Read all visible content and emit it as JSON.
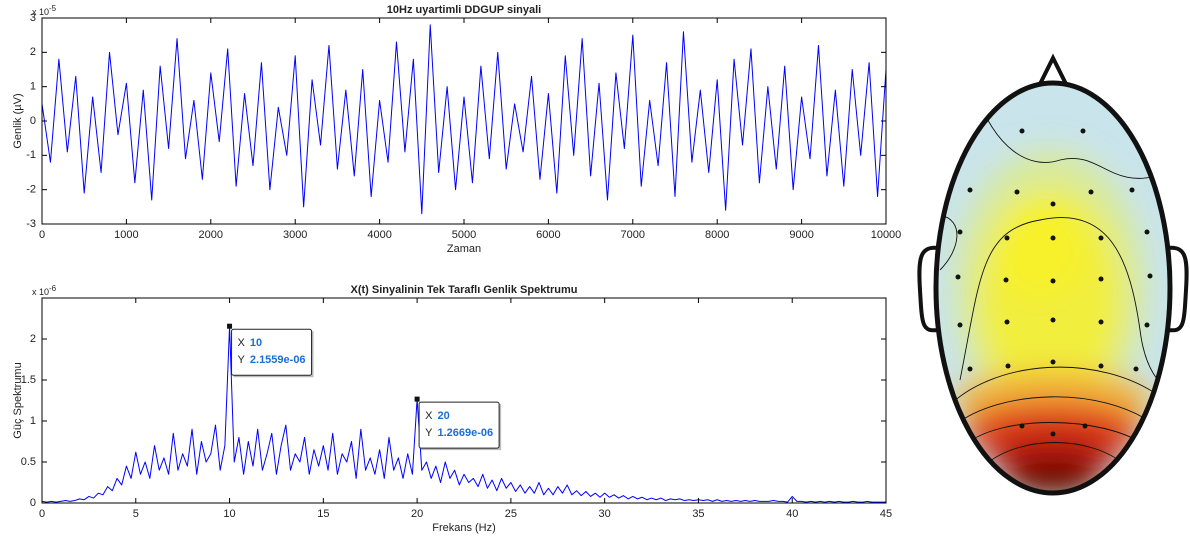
{
  "chart_data": [
    {
      "type": "line",
      "title": "10Hz uyartimli DDGUP sinyali",
      "xlabel": "Zaman",
      "ylabel": "Genlik (µV)",
      "y_multiplier": {
        "base": "x 10",
        "exponent": "-5"
      },
      "color": "#0000ff",
      "xlim": [
        0,
        10000
      ],
      "xticks": [
        0,
        1000,
        2000,
        3000,
        4000,
        5000,
        6000,
        7000,
        8000,
        9000,
        10000
      ],
      "ylim": [
        -3,
        3
      ],
      "yticks": [
        -3,
        -2,
        -1,
        0,
        1,
        2,
        3
      ],
      "x": [
        0,
        100,
        200,
        300,
        400,
        500,
        600,
        700,
        800,
        900,
        1000,
        1100,
        1200,
        1300,
        1400,
        1500,
        1600,
        1700,
        1800,
        1900,
        2000,
        2100,
        2200,
        2300,
        2400,
        2500,
        2600,
        2700,
        2800,
        2900,
        3000,
        3100,
        3200,
        3300,
        3400,
        3500,
        3600,
        3700,
        3800,
        3900,
        4000,
        4100,
        4200,
        4300,
        4400,
        4500,
        4600,
        4700,
        4800,
        4900,
        5000,
        5100,
        5200,
        5300,
        5400,
        5500,
        5600,
        5700,
        5800,
        5900,
        6000,
        6100,
        6200,
        6300,
        6400,
        6500,
        6600,
        6700,
        6800,
        6900,
        7000,
        7100,
        7200,
        7300,
        7400,
        7500,
        7600,
        7700,
        7800,
        7900,
        8000,
        8100,
        8200,
        8300,
        8400,
        8500,
        8600,
        8700,
        8800,
        8900,
        9000,
        9100,
        9200,
        9300,
        9400,
        9500,
        9600,
        9700,
        9800,
        9900,
        10000
      ],
      "values": [
        0.5,
        -1.2,
        1.8,
        -0.9,
        1.3,
        -2.1,
        0.7,
        -1.5,
        2.0,
        -0.4,
        1.1,
        -1.8,
        0.9,
        -2.3,
        1.6,
        -0.8,
        2.4,
        -1.1,
        0.6,
        -1.7,
        1.4,
        -0.6,
        2.1,
        -1.9,
        0.8,
        -1.3,
        1.7,
        -2.0,
        0.4,
        -1.0,
        1.9,
        -2.5,
        1.2,
        -0.7,
        2.2,
        -1.4,
        0.9,
        -1.6,
        1.5,
        -2.2,
        0.6,
        -1.2,
        2.3,
        -0.9,
        1.8,
        -2.7,
        2.8,
        -1.5,
        1.0,
        -2.0,
        0.7,
        -1.8,
        1.6,
        -1.1,
        2.0,
        -1.4,
        0.5,
        -0.9,
        1.3,
        -1.7,
        0.8,
        -2.1,
        1.9,
        -1.0,
        2.4,
        -1.6,
        1.1,
        -2.3,
        1.4,
        -0.8,
        2.5,
        -1.9,
        0.6,
        -1.3,
        1.7,
        -2.2,
        2.6,
        -1.2,
        0.9,
        -1.5,
        1.2,
        -2.6,
        1.8,
        -0.7,
        2.1,
        -1.8,
        1.0,
        -1.4,
        1.6,
        -2.0,
        0.7,
        -1.1,
        2.2,
        -1.6,
        0.9,
        -1.9,
        1.5,
        -1.0,
        1.7,
        -2.2,
        1.5
      ]
    },
    {
      "type": "line",
      "title": "X(t) Sinyalinin Tek Taraflı Genlik Spektrumu",
      "xlabel": "Frekans (Hz)",
      "ylabel": "Güç Spektrumu",
      "y_multiplier": {
        "base": "x 10",
        "exponent": "-6"
      },
      "color": "#0000ff",
      "xlim": [
        0,
        45
      ],
      "xticks": [
        0,
        5,
        10,
        15,
        20,
        25,
        30,
        35,
        40,
        45
      ],
      "ylim": [
        0,
        2.5
      ],
      "yticks": [
        0,
        0.5,
        1,
        1.5,
        2
      ],
      "x": [
        0,
        0.25,
        0.5,
        0.75,
        1,
        1.25,
        1.5,
        1.75,
        2,
        2.25,
        2.5,
        2.75,
        3,
        3.25,
        3.5,
        3.75,
        4,
        4.25,
        4.5,
        4.75,
        5,
        5.25,
        5.5,
        5.75,
        6,
        6.25,
        6.5,
        6.75,
        7,
        7.25,
        7.5,
        7.75,
        8,
        8.25,
        8.5,
        8.75,
        9,
        9.25,
        9.5,
        9.75,
        10,
        10.25,
        10.5,
        10.75,
        11,
        11.25,
        11.5,
        11.75,
        12,
        12.25,
        12.5,
        12.75,
        13,
        13.25,
        13.5,
        13.75,
        14,
        14.25,
        14.5,
        14.75,
        15,
        15.25,
        15.5,
        15.75,
        16,
        16.25,
        16.5,
        16.75,
        17,
        17.25,
        17.5,
        17.75,
        18,
        18.25,
        18.5,
        18.75,
        19,
        19.25,
        19.5,
        19.75,
        20,
        20.25,
        20.5,
        20.75,
        21,
        21.25,
        21.5,
        21.75,
        22,
        22.25,
        22.5,
        22.75,
        23,
        23.25,
        23.5,
        23.75,
        24,
        24.25,
        24.5,
        24.75,
        25,
        25.25,
        25.5,
        25.75,
        26,
        26.25,
        26.5,
        26.75,
        27,
        27.25,
        27.5,
        27.75,
        28,
        28.25,
        28.5,
        28.75,
        29,
        29.25,
        29.5,
        29.75,
        30,
        30.25,
        30.5,
        30.75,
        31,
        31.25,
        31.5,
        31.75,
        32,
        32.25,
        32.5,
        32.75,
        33,
        33.25,
        33.5,
        33.75,
        34,
        34.25,
        34.5,
        34.75,
        35,
        35.25,
        35.5,
        35.75,
        36,
        36.25,
        36.5,
        36.75,
        37,
        37.25,
        37.5,
        37.75,
        38,
        38.25,
        38.5,
        38.75,
        39,
        39.25,
        39.5,
        39.75,
        40,
        40.25,
        40.5,
        40.75,
        41,
        41.25,
        41.5,
        41.75,
        42,
        42.25,
        42.5,
        42.75,
        43,
        43.25,
        43.5,
        43.75,
        44,
        44.25,
        44.5,
        44.75,
        45
      ],
      "values": [
        0.02,
        0.01,
        0.02,
        0.01,
        0.02,
        0.03,
        0.02,
        0.03,
        0.05,
        0.04,
        0.08,
        0.06,
        0.12,
        0.1,
        0.2,
        0.15,
        0.3,
        0.22,
        0.45,
        0.3,
        0.62,
        0.35,
        0.5,
        0.3,
        0.7,
        0.4,
        0.55,
        0.35,
        0.85,
        0.4,
        0.6,
        0.45,
        0.9,
        0.35,
        0.75,
        0.5,
        0.6,
        0.95,
        0.4,
        0.7,
        2.1559,
        0.5,
        0.8,
        0.35,
        0.75,
        0.45,
        0.9,
        0.4,
        0.6,
        0.85,
        0.35,
        0.7,
        0.95,
        0.4,
        0.6,
        0.5,
        0.8,
        0.35,
        0.65,
        0.45,
        0.7,
        0.4,
        0.85,
        0.35,
        0.6,
        0.5,
        0.75,
        0.3,
        0.9,
        0.4,
        0.55,
        0.35,
        0.65,
        0.3,
        0.8,
        0.4,
        0.55,
        0.3,
        0.6,
        0.35,
        1.2669,
        0.4,
        0.5,
        0.3,
        0.45,
        0.25,
        0.5,
        0.3,
        0.4,
        0.22,
        0.35,
        0.25,
        0.3,
        0.2,
        0.35,
        0.18,
        0.28,
        0.15,
        0.3,
        0.18,
        0.25,
        0.14,
        0.22,
        0.12,
        0.2,
        0.12,
        0.25,
        0.1,
        0.18,
        0.1,
        0.2,
        0.12,
        0.22,
        0.1,
        0.15,
        0.09,
        0.14,
        0.08,
        0.12,
        0.07,
        0.12,
        0.07,
        0.1,
        0.06,
        0.09,
        0.05,
        0.08,
        0.05,
        0.07,
        0.04,
        0.06,
        0.04,
        0.06,
        0.03,
        0.05,
        0.04,
        0.05,
        0.03,
        0.04,
        0.03,
        0.04,
        0.03,
        0.04,
        0.02,
        0.04,
        0.02,
        0.03,
        0.02,
        0.03,
        0.02,
        0.03,
        0.02,
        0.03,
        0.02,
        0.02,
        0.02,
        0.03,
        0.02,
        0.02,
        0.01,
        0.08,
        0.02,
        0.02,
        0.01,
        0.02,
        0.01,
        0.02,
        0.01,
        0.02,
        0.01,
        0.02,
        0.01,
        0.01,
        0.02,
        0.01,
        0.01,
        0.02,
        0.01,
        0.01,
        0.01,
        0.01
      ],
      "datatips": [
        {
          "x": 10,
          "y": 2.1559,
          "x_prefix": "X",
          "y_prefix": "Y",
          "x_label": "10",
          "y_label": "2.1559e-06"
        },
        {
          "x": 20,
          "y": 1.2669,
          "x_prefix": "X",
          "y_prefix": "Y",
          "x_label": "20",
          "y_label": "1.2669e-06"
        }
      ]
    }
  ]
}
